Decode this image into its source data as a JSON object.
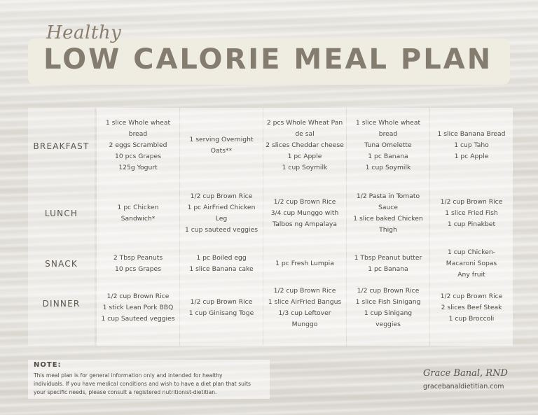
{
  "header": {
    "script_title": "Healthy",
    "main_title": "LOW CALORIE MEAL PLAN"
  },
  "rows": [
    {
      "label": "BREAKFAST"
    },
    {
      "label": "LUNCH"
    },
    {
      "label": "SNACK"
    },
    {
      "label": "DINNER"
    }
  ],
  "days": [
    {
      "breakfast": [
        "1 slice Whole wheat",
        "bread",
        "2 eggs Scrambled",
        "10 pcs Grapes",
        "125g Yogurt"
      ],
      "lunch": [
        "1 pc Chicken",
        "Sandwich*"
      ],
      "snack": [
        "2 Tbsp Peanuts",
        "10 pcs Grapes"
      ],
      "dinner": [
        "1/2 cup Brown Rice",
        "1 stick Lean Pork BBQ",
        "1 cup Sauteed veggies"
      ]
    },
    {
      "breakfast": [
        "1 serving Overnight",
        "Oats**"
      ],
      "lunch": [
        "1/2 cup Brown Rice",
        "1 pc AirFried Chicken",
        "Leg",
        "1 cup sauteed veggies"
      ],
      "snack": [
        "1 pc Boiled egg",
        "1 slice Banana cake"
      ],
      "dinner": [
        "1/2 cup Brown Rice",
        "1 cup Ginisang Toge"
      ]
    },
    {
      "breakfast": [
        "2 pcs Whole Wheat Pan",
        "de sal",
        "2 slices Cheddar cheese",
        "1 pc Apple",
        "1 cup Soymilk"
      ],
      "lunch": [
        "1/2 cup Brown Rice",
        "3/4 cup Munggo with",
        "Talbos ng Ampalaya"
      ],
      "snack": [
        "1 pc Fresh Lumpia"
      ],
      "dinner": [
        "1/2 cup Brown Rice",
        "1 slice AirFried Bangus",
        "1/3 cup Leftover",
        "Munggo"
      ]
    },
    {
      "breakfast": [
        "1 slice Whole wheat",
        "bread",
        "Tuna Omelette",
        "1 pc Banana",
        "1 cup Soymilk"
      ],
      "lunch": [
        "1/2 Pasta in Tomato",
        "Sauce",
        "1 slice baked Chicken",
        "Thigh"
      ],
      "snack": [
        "1 Tbsp Peanut butter",
        "1 pc Banana"
      ],
      "dinner": [
        "1/2 cup Brown Rice",
        "1 slice Fish Sinigang",
        "1 cup Sinigang",
        "veggies"
      ]
    },
    {
      "breakfast": [
        "1 slice Banana Bread",
        "1 cup Taho",
        "1 pc Apple"
      ],
      "lunch": [
        "1/2 cup Brown Rice",
        "1 slice Fried Fish",
        "1 cup Pinakbet"
      ],
      "snack": [
        "1 cup Chicken-",
        "Macaroni Sopas",
        "Any fruit"
      ],
      "dinner": [
        "1/2 cup Brown Rice",
        "2 slices Beef Steak",
        "1 cup Broccoli"
      ]
    }
  ],
  "note": {
    "title": "NOTE:",
    "lines": [
      "This meal plan is for general information only and intended for healthy",
      "individuals. If you have medical conditions and wish to have a diet plan that suits",
      "your specific needs, please consult a registered nutritionist-dietitian."
    ]
  },
  "signature": {
    "name": "Grace Banal, RND",
    "website": "gracebanaldietitian.com"
  }
}
